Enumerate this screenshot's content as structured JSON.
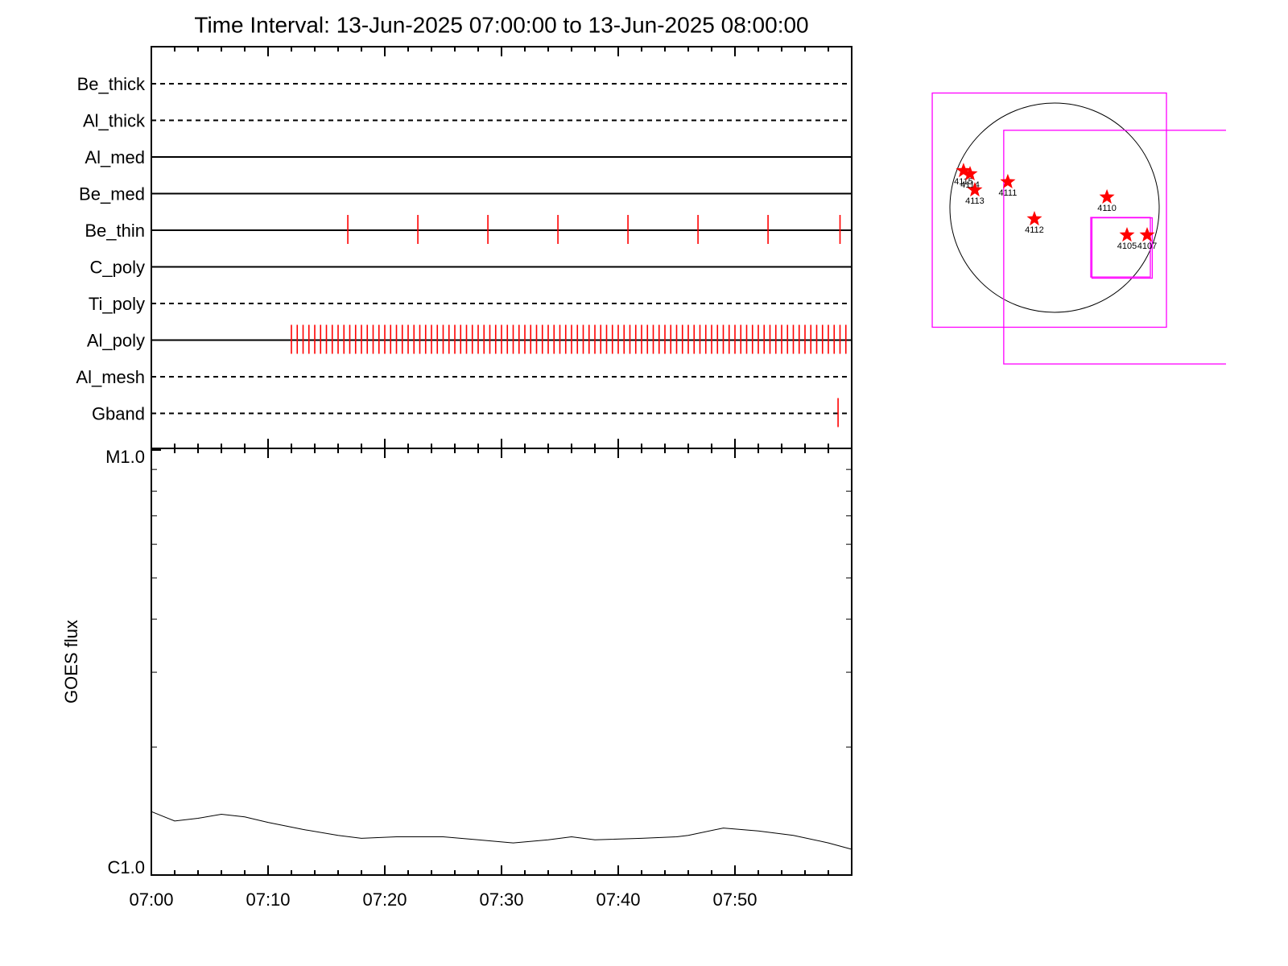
{
  "chart_data": [
    {
      "type": "event-timeline",
      "title": "Time Interval: 13-Jun-2025 07:00:00 to 13-Jun-2025 08:00:00",
      "xlim": [
        "07:00",
        "08:00"
      ],
      "xticks": [
        "07:00",
        "07:10",
        "07:20",
        "07:30",
        "07:40",
        "07:50"
      ],
      "xminorticks": [
        "07:02",
        "07:04",
        "07:06",
        "07:08",
        "07:12",
        "07:14",
        "07:16",
        "07:18",
        "07:22",
        "07:24",
        "07:26",
        "07:28",
        "07:32",
        "07:34",
        "07:36",
        "07:38",
        "07:42",
        "07:44",
        "07:46",
        "07:48",
        "07:52",
        "07:54",
        "07:56",
        "07:58"
      ],
      "color": "#ff0000",
      "filters": [
        {
          "name": "Be_thick",
          "line": "dashed",
          "events": []
        },
        {
          "name": "Al_thick",
          "line": "dashed",
          "events": []
        },
        {
          "name": "Al_med",
          "line": "solid",
          "events": []
        },
        {
          "name": "Be_med",
          "line": "solid",
          "events": []
        },
        {
          "name": "Be_thin",
          "line": "solid",
          "events": [
            "07:16:50",
            "07:22:50",
            "07:28:50",
            "07:34:50",
            "07:40:50",
            "07:46:50",
            "07:52:50",
            "07:59:00"
          ]
        },
        {
          "name": "C_poly",
          "line": "solid",
          "events": []
        },
        {
          "name": "Ti_poly",
          "line": "dashed",
          "events": []
        },
        {
          "name": "Al_poly",
          "line": "solid",
          "events": [
            "07:12:00",
            "07:12:30",
            "07:13:00",
            "07:13:30",
            "07:14:00",
            "07:14:30",
            "07:15:00",
            "07:15:30",
            "07:16:00",
            "07:16:30",
            "07:17:00",
            "07:17:30",
            "07:18:00",
            "07:18:30",
            "07:19:00",
            "07:19:30",
            "07:20:00",
            "07:20:30",
            "07:21:00",
            "07:21:30",
            "07:22:00",
            "07:22:30",
            "07:23:00",
            "07:23:30",
            "07:24:00",
            "07:24:30",
            "07:25:00",
            "07:25:30",
            "07:26:00",
            "07:26:30",
            "07:27:00",
            "07:27:30",
            "07:28:00",
            "07:28:30",
            "07:29:00",
            "07:29:30",
            "07:30:00",
            "07:30:30",
            "07:31:00",
            "07:31:30",
            "07:32:00",
            "07:32:30",
            "07:33:00",
            "07:33:30",
            "07:34:00",
            "07:34:30",
            "07:35:00",
            "07:35:30",
            "07:36:00",
            "07:36:30",
            "07:37:00",
            "07:37:30",
            "07:38:00",
            "07:38:30",
            "07:39:00",
            "07:39:30",
            "07:40:00",
            "07:40:30",
            "07:41:00",
            "07:41:30",
            "07:42:00",
            "07:42:30",
            "07:43:00",
            "07:43:30",
            "07:44:00",
            "07:44:30",
            "07:45:00",
            "07:45:30",
            "07:46:00",
            "07:46:30",
            "07:47:00",
            "07:47:30",
            "07:48:00",
            "07:48:30",
            "07:49:00",
            "07:49:30",
            "07:50:00",
            "07:50:30",
            "07:51:00",
            "07:51:30",
            "07:52:00",
            "07:52:30",
            "07:53:00",
            "07:53:30",
            "07:54:00",
            "07:54:30",
            "07:55:00",
            "07:55:30",
            "07:56:00",
            "07:56:30",
            "07:57:00",
            "07:57:30",
            "07:58:00",
            "07:58:30",
            "07:59:00",
            "07:59:30"
          ]
        },
        {
          "name": "Al_mesh",
          "line": "dashed",
          "events": []
        },
        {
          "name": "Gband",
          "line": "dashed",
          "events": [
            "07:58:50"
          ]
        }
      ]
    },
    {
      "type": "line",
      "ylabel": "GOES flux",
      "log_scale": true,
      "xlim": [
        "07:00",
        "08:00"
      ],
      "xticks": [
        "07:00",
        "07:10",
        "07:20",
        "07:30",
        "07:40",
        "07:50"
      ],
      "xminorticks": [
        "07:02",
        "07:04",
        "07:06",
        "07:08",
        "07:12",
        "07:14",
        "07:16",
        "07:18",
        "07:22",
        "07:24",
        "07:26",
        "07:28",
        "07:32",
        "07:34",
        "07:36",
        "07:38",
        "07:42",
        "07:44",
        "07:46",
        "07:48",
        "07:52",
        "07:54",
        "07:56",
        "07:58"
      ],
      "ylim": [
        1e-06,
        1e-05
      ],
      "yticks": [
        {
          "value": 1e-05,
          "label": "M1.0"
        },
        {
          "value": 1e-06,
          "label": "C1.0"
        }
      ],
      "yminorticks": [
        2e-06,
        3e-06,
        4e-06,
        5e-06,
        6e-06,
        7e-06,
        8e-06,
        9e-06
      ],
      "color": "#000000",
      "x": [
        "07:00",
        "07:02",
        "07:04",
        "07:06",
        "07:08",
        "07:10",
        "07:13",
        "07:16",
        "07:18",
        "07:21",
        "07:25",
        "07:28",
        "07:31",
        "07:34",
        "07:36",
        "07:38",
        "07:42",
        "07:45",
        "07:46",
        "07:49",
        "07:52",
        "07:55",
        "07:58",
        "08:00"
      ],
      "values": [
        1.41e-06,
        1.34e-06,
        1.36e-06,
        1.39e-06,
        1.37e-06,
        1.33e-06,
        1.28e-06,
        1.24e-06,
        1.22e-06,
        1.23e-06,
        1.23e-06,
        1.21e-06,
        1.19e-06,
        1.21e-06,
        1.23e-06,
        1.21e-06,
        1.22e-06,
        1.23e-06,
        1.24e-06,
        1.29e-06,
        1.27e-06,
        1.24e-06,
        1.19e-06,
        1.15e-06
      ]
    },
    {
      "type": "solar-disk",
      "solar_radius": 945,
      "color": "#ff0000",
      "fov_color": "#ff00ff",
      "regions": [
        {
          "label": "4115",
          "x": -822,
          "y": 334
        },
        {
          "label": "4114",
          "x": -763,
          "y": 305
        },
        {
          "label": "4113",
          "x": -720,
          "y": 160
        },
        {
          "label": "4111",
          "x": -422,
          "y": 233
        },
        {
          "label": "4112",
          "x": -182,
          "y": -102
        },
        {
          "label": "4110",
          "x": 473,
          "y": 95
        },
        {
          "label": "4105",
          "x": 654,
          "y": -247
        },
        {
          "label": "4107",
          "x": 836,
          "y": -247
        }
      ],
      "fov": [
        {
          "x": -47,
          "y": -22,
          "size": 2115
        },
        {
          "x": 596,
          "y": -356,
          "size": 2110
        },
        {
          "x": 596,
          "y": -357,
          "size": 538
        },
        {
          "x": 610,
          "y": -364,
          "size": 545
        }
      ]
    }
  ]
}
